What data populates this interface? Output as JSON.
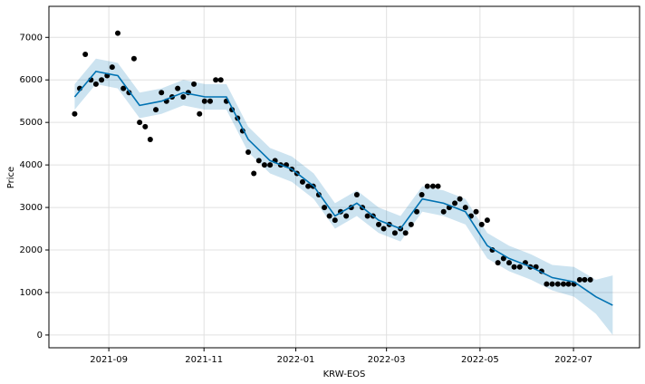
{
  "chart_data": {
    "type": "line",
    "x_label": "KRW-EOS",
    "y_label": "Price",
    "grid": true,
    "xlim": [
      2021.559,
      2022.614
    ],
    "ylim": [
      -300,
      7730
    ],
    "xticks": [
      {
        "value": 2021.666,
        "label": "2021-09"
      },
      {
        "value": 2021.836,
        "label": "2021-11"
      },
      {
        "value": 2022.0,
        "label": "2022-01"
      },
      {
        "value": 2022.162,
        "label": "2022-03"
      },
      {
        "value": 2022.329,
        "label": "2022-05"
      },
      {
        "value": 2022.496,
        "label": "2022-07"
      }
    ],
    "yticks": [
      0,
      1000,
      2000,
      3000,
      4000,
      5000,
      6000,
      7000
    ],
    "points": {
      "color": "#000000",
      "x": [
        2021.605,
        2021.614,
        2021.624,
        2021.634,
        2021.643,
        2021.653,
        2021.663,
        2021.672,
        2021.682,
        2021.692,
        2021.702,
        2021.711,
        2021.721,
        2021.731,
        2021.74,
        2021.75,
        2021.76,
        2021.769,
        2021.779,
        2021.789,
        2021.799,
        2021.808,
        2021.818,
        2021.828,
        2021.837,
        2021.847,
        2021.857,
        2021.866,
        2021.876,
        2021.886,
        2021.896,
        2021.905,
        2021.915,
        2021.925,
        2021.934,
        2021.944,
        2021.954,
        2021.963,
        2021.973,
        2021.983,
        2021.993,
        2022.002,
        2022.012,
        2022.022,
        2022.031,
        2022.041,
        2022.051,
        2022.06,
        2022.07,
        2022.08,
        2022.09,
        2022.099,
        2022.109,
        2022.119,
        2022.128,
        2022.138,
        2022.148,
        2022.157,
        2022.167,
        2022.177,
        2022.187,
        2022.196,
        2022.206,
        2022.216,
        2022.225,
        2022.235,
        2022.245,
        2022.254,
        2022.264,
        2022.274,
        2022.284,
        2022.293,
        2022.303,
        2022.313,
        2022.322,
        2022.332,
        2022.342,
        2022.351,
        2022.361,
        2022.371,
        2022.381,
        2022.39,
        2022.4,
        2022.41,
        2022.419,
        2022.429,
        2022.439,
        2022.448,
        2022.458,
        2022.468,
        2022.478,
        2022.487,
        2022.497,
        2022.507,
        2022.516,
        2022.526
      ],
      "values": [
        5200,
        5800,
        6600,
        6000,
        5900,
        6000,
        6100,
        6300,
        7100,
        5800,
        5700,
        6500,
        5000,
        4900,
        4600,
        5300,
        5700,
        5500,
        5600,
        5800,
        5600,
        5700,
        5900,
        5200,
        5500,
        5500,
        6000,
        6000,
        5500,
        5300,
        5100,
        4800,
        4300,
        3800,
        4100,
        4000,
        4000,
        4100,
        4000,
        4000,
        3900,
        3800,
        3600,
        3500,
        3500,
        3300,
        3000,
        2800,
        2700,
        2900,
        2800,
        3000,
        3300,
        3000,
        2800,
        2800,
        2600,
        2500,
        2600,
        2400,
        2500,
        2400,
        2600,
        2900,
        3300,
        3500,
        3500,
        3500,
        2900,
        3000,
        3100,
        3200,
        3000,
        2800,
        2900,
        2600,
        2700,
        2000,
        1700,
        1800,
        1700,
        1600,
        1600,
        1700,
        1600,
        1600,
        1500,
        1200,
        1200,
        1200,
        1200,
        1200,
        1200,
        1300,
        1300,
        1300
      ]
    },
    "forecast": {
      "color": "#0072B2",
      "x": [
        2021.605,
        2021.643,
        2021.682,
        2021.721,
        2021.76,
        2021.799,
        2021.838,
        2021.876,
        2021.915,
        2021.954,
        2021.993,
        2022.032,
        2022.07,
        2022.109,
        2022.148,
        2022.187,
        2022.226,
        2022.264,
        2022.303,
        2022.342,
        2022.381,
        2022.42,
        2022.458,
        2022.497,
        2022.536,
        2022.566
      ],
      "values": [
        5600,
        6200,
        6100,
        5400,
        5500,
        5700,
        5600,
        5600,
        4600,
        4100,
        3900,
        3500,
        2800,
        3100,
        2700,
        2500,
        3200,
        3100,
        2900,
        2100,
        1800,
        1600,
        1350,
        1250,
        900,
        700
      ],
      "lower": [
        5300,
        5900,
        5800,
        5100,
        5200,
        5400,
        5300,
        5300,
        4300,
        3800,
        3600,
        3200,
        2500,
        2800,
        2400,
        2200,
        2900,
        2800,
        2600,
        1800,
        1500,
        1300,
        1050,
        900,
        500,
        0
      ],
      "upper": [
        5900,
        6500,
        6400,
        5700,
        5800,
        6000,
        5900,
        5900,
        4900,
        4400,
        4200,
        3800,
        3100,
        3400,
        3000,
        2800,
        3500,
        3400,
        3200,
        2400,
        2100,
        1900,
        1650,
        1600,
        1300,
        1400
      ]
    }
  }
}
